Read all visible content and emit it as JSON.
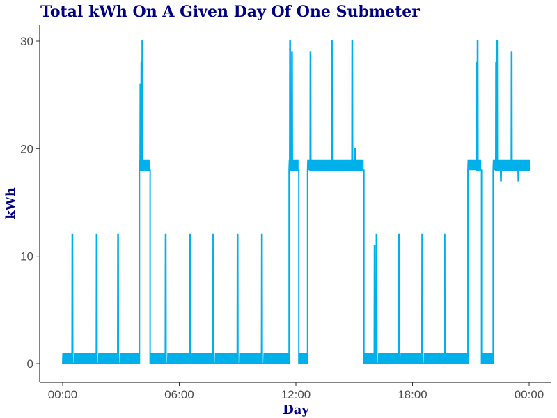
{
  "chart_data": {
    "type": "line",
    "title": "Total kWh On A Given Day Of One Submeter",
    "xlabel": "Day",
    "ylabel": "kWh",
    "xlim": [
      0,
      24
    ],
    "ylim": [
      -1.5,
      31.5
    ],
    "grid": false,
    "legend": "none",
    "x_ticks": [
      {
        "value": 0,
        "label": "00:00"
      },
      {
        "value": 6,
        "label": "06:00"
      },
      {
        "value": 12,
        "label": "12:00"
      },
      {
        "value": 18,
        "label": "18:00"
      },
      {
        "value": 24,
        "label": "00:00"
      }
    ],
    "y_ticks": [
      {
        "value": 0,
        "label": "0"
      },
      {
        "value": 10,
        "label": "10"
      },
      {
        "value": 20,
        "label": "20"
      },
      {
        "value": 30,
        "label": "30"
      }
    ],
    "series": [
      {
        "color": "#00B0EB",
        "x_unit": "hours",
        "base_level": 0,
        "base_flicker_high": 1,
        "segments": [
          {
            "type": "flicker",
            "x0": 0.0,
            "x1": 0.45,
            "low": 0,
            "high": 1
          },
          {
            "type": "spike",
            "x": 0.5,
            "peak": 12
          },
          {
            "type": "flicker",
            "x0": 0.6,
            "x1": 1.7,
            "low": 0,
            "high": 1
          },
          {
            "type": "spike",
            "x": 1.75,
            "peak": 12
          },
          {
            "type": "flicker",
            "x0": 1.85,
            "x1": 2.8,
            "low": 0,
            "high": 1
          },
          {
            "type": "spike",
            "x": 2.85,
            "peak": 12
          },
          {
            "type": "flicker",
            "x0": 2.95,
            "x1": 3.9,
            "low": 0,
            "high": 1
          },
          {
            "type": "level",
            "x0": 3.95,
            "x1": 4.45,
            "value": 18
          },
          {
            "type": "flicker",
            "x0": 3.95,
            "x1": 4.45,
            "low": 18,
            "high": 19
          },
          {
            "type": "spike",
            "x": 4.0,
            "peak": 26
          },
          {
            "type": "spike",
            "x": 4.05,
            "peak": 28
          },
          {
            "type": "spike",
            "x": 4.1,
            "peak": 30
          },
          {
            "type": "flicker",
            "x0": 4.5,
            "x1": 5.25,
            "low": 0,
            "high": 1
          },
          {
            "type": "spike",
            "x": 5.3,
            "peak": 12
          },
          {
            "type": "flicker",
            "x0": 5.4,
            "x1": 6.5,
            "low": 0,
            "high": 1
          },
          {
            "type": "spike",
            "x": 6.55,
            "peak": 12
          },
          {
            "type": "flicker",
            "x0": 6.65,
            "x1": 7.7,
            "low": 0,
            "high": 1
          },
          {
            "type": "spike",
            "x": 7.75,
            "peak": 12
          },
          {
            "type": "flicker",
            "x0": 7.85,
            "x1": 8.95,
            "low": 0,
            "high": 1
          },
          {
            "type": "spike",
            "x": 9.0,
            "peak": 12
          },
          {
            "type": "flicker",
            "x0": 9.1,
            "x1": 10.2,
            "low": 0,
            "high": 1
          },
          {
            "type": "spike",
            "x": 10.25,
            "peak": 12
          },
          {
            "type": "flicker",
            "x0": 10.35,
            "x1": 11.6,
            "low": 0,
            "high": 1
          },
          {
            "type": "level",
            "x0": 11.65,
            "x1": 12.1,
            "value": 18
          },
          {
            "type": "flicker",
            "x0": 11.65,
            "x1": 12.1,
            "low": 18,
            "high": 19
          },
          {
            "type": "spike",
            "x": 11.7,
            "peak": 30
          },
          {
            "type": "spike",
            "x": 11.8,
            "peak": 29
          },
          {
            "type": "flicker",
            "x0": 12.15,
            "x1": 12.55,
            "low": 0,
            "high": 1
          },
          {
            "type": "level",
            "x0": 12.6,
            "x1": 15.45,
            "value": 18
          },
          {
            "type": "flicker",
            "x0": 12.6,
            "x1": 15.45,
            "low": 18,
            "high": 19
          },
          {
            "type": "spike",
            "x": 12.75,
            "peak": 29
          },
          {
            "type": "spike",
            "x": 13.85,
            "peak": 30
          },
          {
            "type": "spike",
            "x": 14.9,
            "peak": 30
          },
          {
            "type": "spike",
            "x": 15.05,
            "peak": 20
          },
          {
            "type": "flicker",
            "x0": 15.5,
            "x1": 16.1,
            "low": 0,
            "high": 1
          },
          {
            "type": "spike",
            "x": 16.05,
            "peak": 11
          },
          {
            "type": "spike",
            "x": 16.15,
            "peak": 12
          },
          {
            "type": "flicker",
            "x0": 16.25,
            "x1": 17.25,
            "low": 0,
            "high": 1
          },
          {
            "type": "spike",
            "x": 17.3,
            "peak": 12
          },
          {
            "type": "flicker",
            "x0": 17.4,
            "x1": 18.45,
            "low": 0,
            "high": 1
          },
          {
            "type": "spike",
            "x": 18.5,
            "peak": 12
          },
          {
            "type": "flicker",
            "x0": 18.6,
            "x1": 19.6,
            "low": 0,
            "high": 1
          },
          {
            "type": "spike",
            "x": 19.65,
            "peak": 12
          },
          {
            "type": "flicker",
            "x0": 19.75,
            "x1": 20.8,
            "low": 0,
            "high": 1
          },
          {
            "type": "level",
            "x0": 20.85,
            "x1": 21.5,
            "value": 18
          },
          {
            "type": "flicker",
            "x0": 20.85,
            "x1": 21.5,
            "low": 18,
            "high": 19
          },
          {
            "type": "spike",
            "x": 21.3,
            "peak": 28
          },
          {
            "type": "spike",
            "x": 21.35,
            "peak": 30
          },
          {
            "type": "flicker",
            "x0": 21.55,
            "x1": 22.1,
            "low": 0,
            "high": 1
          },
          {
            "type": "level",
            "x0": 22.15,
            "x1": 24.0,
            "value": 18
          },
          {
            "type": "flicker",
            "x0": 22.15,
            "x1": 24.0,
            "low": 18,
            "high": 19
          },
          {
            "type": "spike",
            "x": 22.3,
            "peak": 28
          },
          {
            "type": "spike",
            "x": 22.35,
            "peak": 30
          },
          {
            "type": "spike",
            "x": 22.55,
            "peak": 17
          },
          {
            "type": "spike",
            "x": 23.1,
            "peak": 29
          },
          {
            "type": "spike",
            "x": 23.45,
            "peak": 17
          }
        ]
      }
    ]
  }
}
